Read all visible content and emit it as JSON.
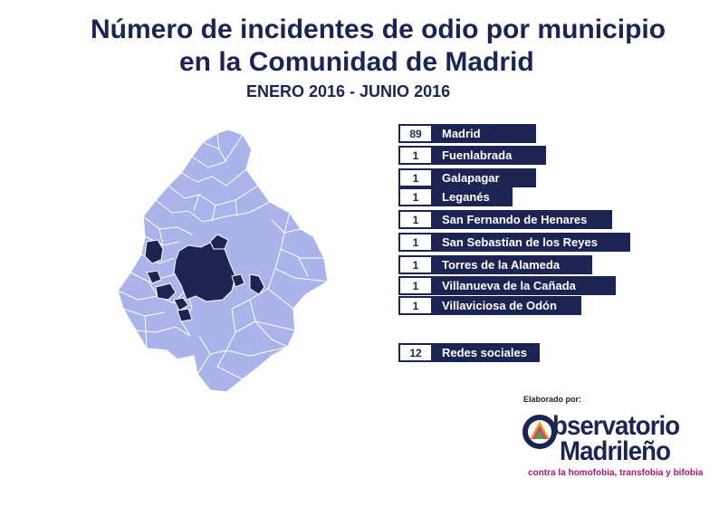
{
  "title_line1": "Número de incidentes de odio por municipio",
  "title_line2": "en la Comunidad de Madrid",
  "subtitle": "ENERO 2016 - JUNIO 2016",
  "colors": {
    "dark": "#1c2453",
    "light": "#aab4ea",
    "border": "#ffffff"
  },
  "municipalities": [
    {
      "count": "89",
      "name": "Madrid"
    },
    {
      "count": "1",
      "name": "Fuenlabrada"
    },
    {
      "count": "1",
      "name": "Galapagar"
    },
    {
      "count": "1",
      "name": "Leganés"
    },
    {
      "count": "1",
      "name": "San Fernando de Henares"
    },
    {
      "count": "1",
      "name": "San Sebastían de los Reyes"
    },
    {
      "count": "1",
      "name": "Torres de la Alameda"
    },
    {
      "count": "1",
      "name": "Villanueva de la Cañada"
    },
    {
      "count": "1",
      "name": "Villaviciosa de Odón"
    }
  ],
  "social": {
    "count": "12",
    "name": "Redes sociales"
  },
  "credit": {
    "elaborado": "Elaborado por:",
    "logo_line1": "bservatorio",
    "logo_line2": "Madrileño",
    "tagline": "contra la homofobia, transfobia y bifobia"
  }
}
